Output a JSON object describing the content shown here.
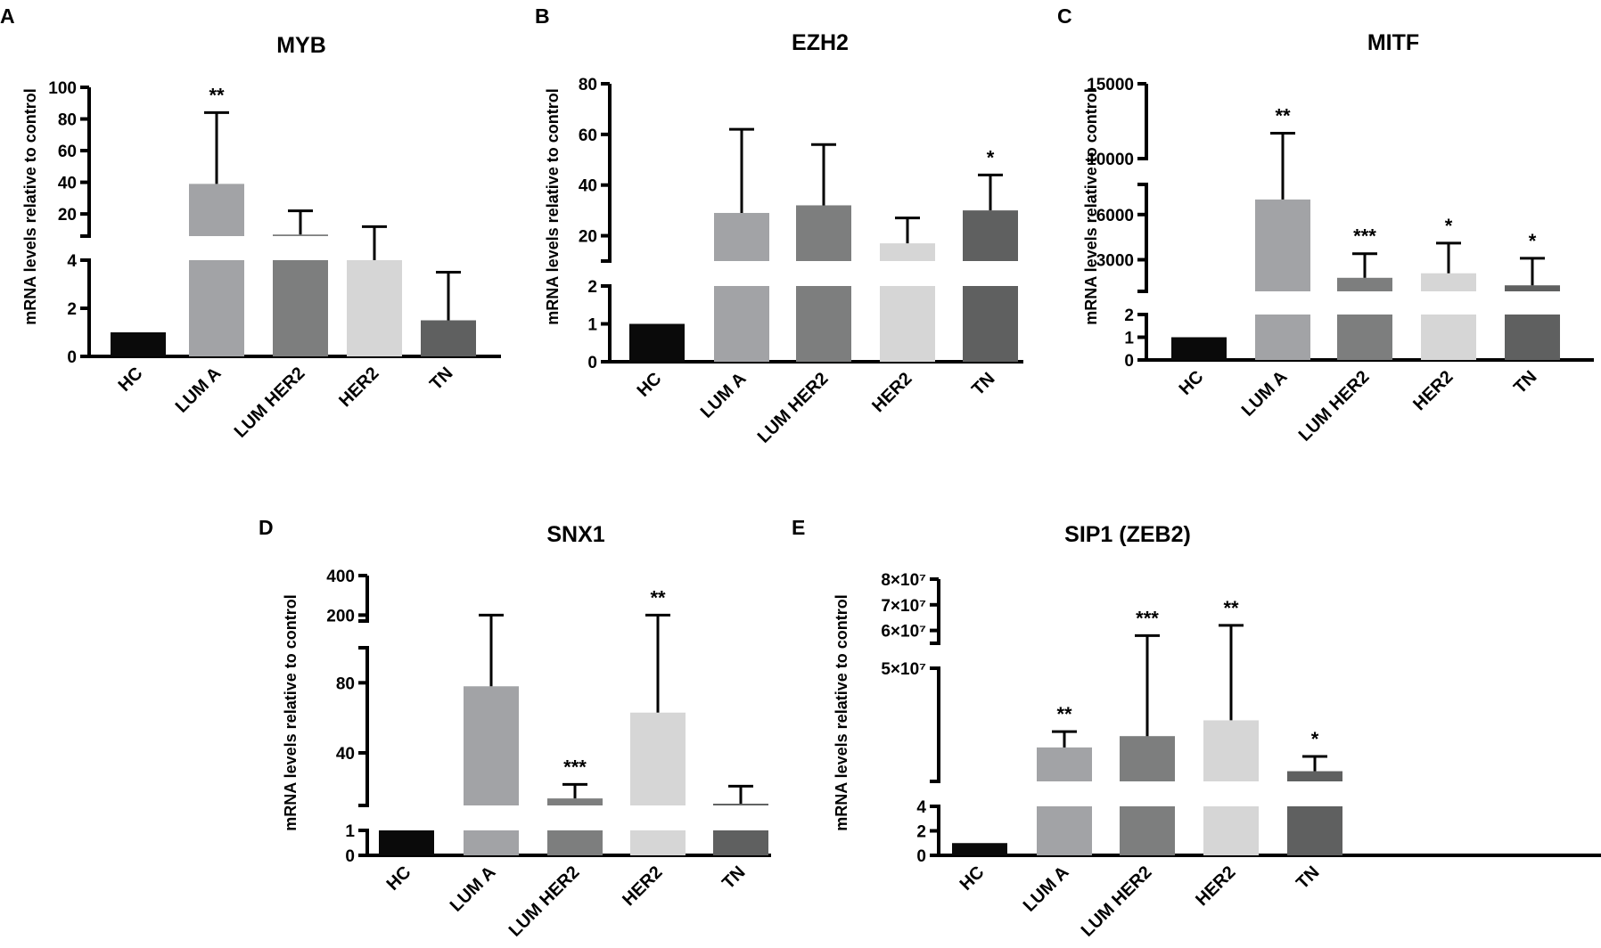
{
  "chart_data": [
    {
      "panel": "A",
      "type": "bar",
      "title": "MYB",
      "ylabel": "mRNA levels relative to control",
      "categories": [
        "HC",
        "LUM A",
        "LUM HER2",
        "HER2",
        "TN"
      ],
      "values": [
        1,
        39,
        7,
        4,
        1.5
      ],
      "error": [
        0,
        84,
        22,
        12,
        3.5
      ],
      "significance": [
        "",
        "**",
        "",
        "",
        ""
      ],
      "colors": [
        "#0a0a0a",
        "#a2a3a6",
        "#7d7e7e",
        "#d6d6d6",
        "#5f6060"
      ],
      "segments": [
        {
          "min": 0,
          "max": 4,
          "ticks": [
            0,
            2,
            4
          ],
          "labels": [
            "0",
            "2",
            "4"
          ]
        },
        {
          "min": 6,
          "max": 100,
          "ticks": [
            20,
            40,
            60,
            80,
            100
          ],
          "labels": [
            "20",
            "40",
            "60",
            "80",
            "100"
          ]
        }
      ]
    },
    {
      "panel": "B",
      "type": "bar",
      "title": "EZH2",
      "ylabel": "mRNA levels relative to control",
      "categories": [
        "HC",
        "LUM A",
        "LUM HER2",
        "HER2",
        "TN"
      ],
      "values": [
        1,
        29,
        32,
        17,
        30
      ],
      "error": [
        0,
        62,
        56,
        27,
        44
      ],
      "significance": [
        "",
        "",
        "",
        "",
        "*"
      ],
      "colors": [
        "#0a0a0a",
        "#a2a3a6",
        "#7d7e7e",
        "#d6d6d6",
        "#5f6060"
      ],
      "segments": [
        {
          "min": 0,
          "max": 2,
          "ticks": [
            0,
            1,
            2
          ],
          "labels": [
            "0",
            "1",
            "2"
          ]
        },
        {
          "min": 10,
          "max": 80,
          "ticks": [
            20,
            40,
            60,
            80
          ],
          "labels": [
            "20",
            "40",
            "60",
            "80"
          ]
        }
      ]
    },
    {
      "panel": "C",
      "type": "bar",
      "title": "MITF",
      "ylabel": "mRNA levels relative to control",
      "categories": [
        "HC",
        "LUM A",
        "LUM HER2",
        "HER2",
        "TN"
      ],
      "values": [
        1,
        7000,
        1800,
        2100,
        1300
      ],
      "error": [
        0,
        11700,
        3400,
        4100,
        3100
      ],
      "significance": [
        "",
        "**",
        "***",
        "*",
        "*"
      ],
      "colors": [
        "#0a0a0a",
        "#a2a3a6",
        "#7d7e7e",
        "#d6d6d6",
        "#5f6060"
      ],
      "segments": [
        {
          "min": 0,
          "max": 2,
          "ticks": [
            0,
            1,
            2
          ],
          "labels": [
            "0",
            "1",
            "2"
          ]
        },
        {
          "min": 900,
          "max": 8000,
          "ticks": [
            3000,
            6000
          ],
          "labels": [
            "3000",
            "6000"
          ]
        },
        {
          "min": 10000,
          "max": 15000,
          "ticks": [
            10000,
            15000
          ],
          "labels": [
            "10000",
            "15000"
          ]
        }
      ]
    },
    {
      "panel": "D",
      "type": "bar",
      "title": "SNX1",
      "ylabel": "mRNA levels relative to control",
      "categories": [
        "HC",
        "LUM A",
        "LUM HER2",
        "HER2",
        "TN"
      ],
      "values": [
        1,
        78,
        14,
        63,
        11
      ],
      "error": [
        0,
        200,
        22,
        200,
        21
      ],
      "significance": [
        "",
        "",
        "***",
        "**",
        ""
      ],
      "colors": [
        "#0a0a0a",
        "#a2a3a6",
        "#7d7e7e",
        "#d6d6d6",
        "#5f6060"
      ],
      "segments": [
        {
          "min": 0,
          "max": 1,
          "ticks": [
            0,
            1
          ],
          "labels": [
            "0",
            "1"
          ]
        },
        {
          "min": 10,
          "max": 100,
          "ticks": [
            40,
            80
          ],
          "labels": [
            "40",
            "80"
          ]
        },
        {
          "min": 170,
          "max": 400,
          "ticks": [
            200,
            400
          ],
          "labels": [
            "200",
            "400"
          ]
        }
      ]
    },
    {
      "panel": "E",
      "type": "bar",
      "title": "SIP1 (ZEB2)",
      "ylabel": "mRNA levels relative to control",
      "categories": [
        "HC",
        "LUM A",
        "LUM HER2",
        "HER2",
        "TN"
      ],
      "values": [
        1,
        15000000,
        20000000,
        27000000,
        4500000
      ],
      "error": [
        0,
        22000000,
        58000000,
        62000000,
        11000000
      ],
      "significance": [
        "",
        "**",
        "***",
        "**",
        "*"
      ],
      "colors": [
        "#0a0a0a",
        "#a2a3a6",
        "#7d7e7e",
        "#d6d6d6",
        "#5f6060"
      ],
      "segments": [
        {
          "min": 0,
          "max": 4,
          "ticks": [
            0,
            2,
            4
          ],
          "labels": [
            "0",
            "2",
            "4"
          ]
        },
        {
          "min": 0,
          "max": 50000000,
          "ticks": [
            50000000
          ],
          "labels": [
            "5×10⁷"
          ]
        },
        {
          "min": 55000000,
          "max": 80000000,
          "ticks": [
            60000000,
            70000000,
            80000000
          ],
          "labels": [
            "6×10⁷",
            "7×10⁷",
            "8×10⁷"
          ]
        }
      ]
    }
  ]
}
